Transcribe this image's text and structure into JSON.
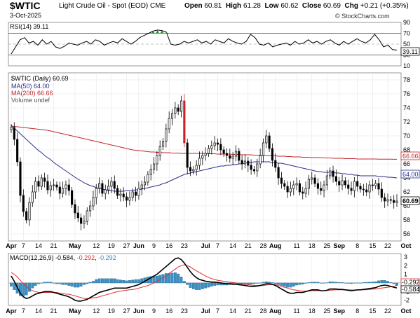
{
  "header": {
    "ticker": "$WTIC",
    "name": "Light Crude Oil - Spot (EOD)",
    "exchange": "CME",
    "date": "3-Oct-2025",
    "open_label": "Open",
    "open": "60.81",
    "high_label": "High",
    "high": "61.28",
    "low_label": "Low",
    "low": "60.62",
    "close_label": "Close",
    "close": "60.69",
    "chg_label": "Chg",
    "chg": "+0.21 (+0.35%)",
    "credit": "© StockCharts.com"
  },
  "colors": {
    "price_up_fill": "#ffffff",
    "price_down": "#000000",
    "spike": "#cc1e2c",
    "ma50": "#2a2e8c",
    "ma200": "#c0272d",
    "macd": "#000000",
    "signal": "#e03030",
    "histogram": "#3a8fc4",
    "rsi_line": "#000000",
    "rsi_overbought_fill": "#2a8c3a"
  },
  "chart_data": [
    {
      "type": "line",
      "panel": "RSI",
      "legend": "RSI(14) 39.11",
      "ylim": [
        10,
        90
      ],
      "ticks": [
        10,
        30,
        50,
        70,
        90
      ],
      "reference_lines": [
        30,
        50,
        70
      ],
      "last_value_tag": "39.11",
      "values": [
        32,
        45,
        58,
        62,
        52,
        55,
        48,
        58,
        50,
        55,
        45,
        42,
        46,
        52,
        50,
        48,
        52,
        55,
        50,
        58,
        55,
        48,
        52,
        55,
        52,
        60,
        55,
        50,
        55,
        62,
        66,
        70,
        74,
        76,
        75,
        72,
        50,
        48,
        50,
        55,
        52,
        55,
        58,
        52,
        55,
        50,
        58,
        55,
        52,
        60,
        55,
        52,
        50,
        55,
        68,
        62,
        50,
        48,
        52,
        45,
        48,
        50,
        52,
        48,
        55,
        50,
        52,
        58,
        52,
        55,
        50,
        55,
        58,
        52,
        48,
        55,
        50,
        55,
        60,
        55,
        52,
        58,
        68,
        58,
        45,
        48,
        40,
        39
      ]
    },
    {
      "type": "candlestick",
      "panel": "price",
      "legend": [
        {
          "name": "$WTIC (Daily) 60.69"
        },
        {
          "name": "MA(50) 64.00"
        },
        {
          "name": "MA(200) 66.66"
        },
        {
          "name": "Volume undef"
        }
      ],
      "ylim": [
        55,
        79
      ],
      "ticks": [
        56,
        58,
        60,
        62,
        64,
        66,
        68,
        70,
        72,
        74,
        76,
        78
      ],
      "price_tags": [
        "66.66",
        "64.00",
        "60.69"
      ],
      "x_labels": [
        {
          "label": "Apr",
          "i": 0
        },
        {
          "label": "7",
          "i": 4
        },
        {
          "label": "14",
          "i": 9
        },
        {
          "label": "21",
          "i": 14
        },
        {
          "label": "May",
          "i": 21
        },
        {
          "label": "12",
          "i": 28
        },
        {
          "label": "19",
          "i": 33
        },
        {
          "label": "27",
          "i": 38
        },
        {
          "label": "Jun",
          "i": 42
        },
        {
          "label": "9",
          "i": 47
        },
        {
          "label": "16",
          "i": 52
        },
        {
          "label": "23",
          "i": 57
        },
        {
          "label": "Jul",
          "i": 64
        },
        {
          "label": "7",
          "i": 68
        },
        {
          "label": "14",
          "i": 73
        },
        {
          "label": "21",
          "i": 78
        },
        {
          "label": "28",
          "i": 83
        },
        {
          "label": "Aug",
          "i": 87
        },
        {
          "label": "11",
          "i": 94
        },
        {
          "label": "18",
          "i": 99
        },
        {
          "label": "25",
          "i": 104
        },
        {
          "label": "Sep",
          "i": 108
        },
        {
          "label": "8",
          "i": 114
        },
        {
          "label": "15",
          "i": 119
        },
        {
          "label": "22",
          "i": 124
        },
        {
          "label": "Oct",
          "i": 130
        }
      ],
      "closes": [
        71.2,
        69.5,
        66.3,
        61.5,
        59.2,
        58.0,
        60.5,
        62.0,
        63.5,
        62.8,
        64.0,
        63.5,
        62.3,
        62.9,
        63.0,
        62.7,
        61.8,
        62.5,
        63.0,
        62.2,
        60.2,
        59.0,
        58.3,
        57.5,
        57.8,
        59.3,
        60.0,
        61.2,
        62.5,
        63.2,
        61.8,
        62.3,
        62.8,
        63.5,
        62.5,
        61.5,
        61.7,
        61.3,
        60.8,
        61.2,
        62.0,
        61.5,
        62.5,
        63.0,
        63.4,
        64.5,
        65.2,
        66.0,
        67.2,
        68.5,
        69.2,
        71.0,
        72.5,
        73.2,
        74.0,
        73.5,
        75.0,
        69.0,
        65.5,
        65.0,
        65.2,
        65.8,
        66.8,
        67.2,
        67.5,
        68.2,
        68.6,
        69.0,
        68.8,
        68.0,
        67.5,
        67.2,
        66.8,
        67.1,
        67.8,
        66.5,
        66.0,
        66.4,
        65.8,
        65.2,
        65.0,
        66.0,
        67.2,
        69.0,
        70.0,
        68.2,
        66.5,
        65.5,
        64.0,
        63.2,
        62.8,
        62.0,
        62.5,
        63.0,
        63.2,
        62.0,
        61.8,
        62.5,
        63.8,
        64.0,
        63.2,
        62.5,
        62.2,
        63.0,
        64.3,
        65.0,
        64.2,
        63.5,
        63.0,
        63.6,
        63.0,
        62.5,
        62.2,
        63.5,
        62.8,
        62.4,
        62.3,
        62.0,
        63.0,
        62.9,
        63.2,
        62.4,
        61.2,
        60.7,
        60.9,
        60.8,
        60.48,
        60.69
      ],
      "ma50": [
        71.5,
        71.1,
        70.7,
        70.3,
        69.9,
        69.5,
        69.1,
        68.7,
        68.3,
        67.9,
        67.6,
        67.2,
        66.9,
        66.6,
        66.2,
        65.9,
        65.6,
        65.3,
        65.0,
        64.7,
        64.4,
        64.1,
        63.8,
        63.6,
        63.3,
        63.1,
        62.9,
        62.8,
        62.6,
        62.5,
        62.4,
        62.3,
        62.2,
        62.2,
        62.1,
        62.1,
        62.1,
        62.1,
        62.2,
        62.2,
        62.2,
        62.3,
        62.3,
        62.4,
        62.5,
        62.6,
        62.7,
        62.8,
        62.9,
        63.0,
        63.2,
        63.3,
        63.5,
        63.7,
        63.9,
        64.1,
        64.3,
        64.5,
        64.6,
        64.7,
        64.8,
        64.9,
        65.0,
        65.1,
        65.2,
        65.3,
        65.4,
        65.5,
        65.6,
        65.7,
        65.7,
        65.8,
        65.8,
        65.9,
        65.9,
        66.0,
        66.0,
        66.1,
        66.2,
        66.2,
        66.3,
        66.3,
        66.3,
        66.3,
        66.3,
        66.3,
        66.2,
        66.2,
        66.1,
        66.1,
        66.0,
        65.9,
        65.8,
        65.7,
        65.6,
        65.5,
        65.4,
        65.3,
        65.2,
        65.1,
        65.0,
        64.9,
        64.9,
        64.8,
        64.8,
        64.8,
        64.8,
        64.7,
        64.7,
        64.6,
        64.6,
        64.5,
        64.5,
        64.4,
        64.4,
        64.3,
        64.3,
        64.3,
        64.3,
        64.3,
        64.3,
        64.2,
        64.2,
        64.2,
        64.1,
        64.1,
        64.05,
        64.0
      ],
      "ma200": [
        71.4,
        71.35,
        71.3,
        71.25,
        71.2,
        71.15,
        71.1,
        71.05,
        71.0,
        70.95,
        70.9,
        70.85,
        70.8,
        70.7,
        70.6,
        70.5,
        70.4,
        70.3,
        70.2,
        70.1,
        70.0,
        69.9,
        69.8,
        69.7,
        69.6,
        69.5,
        69.4,
        69.3,
        69.2,
        69.1,
        69.0,
        68.9,
        68.8,
        68.7,
        68.6,
        68.5,
        68.4,
        68.3,
        68.2,
        68.1,
        68.0,
        67.95,
        67.9,
        67.85,
        67.8,
        67.75,
        67.7,
        67.7,
        67.65,
        67.65,
        67.6,
        67.6,
        67.6,
        67.55,
        67.55,
        67.55,
        67.5,
        67.5,
        67.5,
        67.5,
        67.5,
        67.5,
        67.5,
        67.5,
        67.45,
        67.45,
        67.45,
        67.45,
        67.4,
        67.4,
        67.4,
        67.4,
        67.4,
        67.35,
        67.35,
        67.35,
        67.3,
        67.3,
        67.3,
        67.3,
        67.25,
        67.25,
        67.25,
        67.2,
        67.2,
        67.2,
        67.15,
        67.15,
        67.1,
        67.1,
        67.1,
        67.05,
        67.05,
        67.0,
        67.0,
        67.0,
        66.95,
        66.95,
        66.95,
        66.9,
        66.9,
        66.9,
        66.9,
        66.85,
        66.85,
        66.85,
        66.8,
        66.8,
        66.8,
        66.8,
        66.75,
        66.75,
        66.75,
        66.75,
        66.7,
        66.7,
        66.7,
        66.7,
        66.7,
        66.7,
        66.7,
        66.68,
        66.68,
        66.68,
        66.67,
        66.67,
        66.66,
        66.66
      ]
    },
    {
      "type": "line",
      "panel": "MACD",
      "legend": [
        {
          "name": "MACD(12,26,9)",
          "value": "-0.584"
        },
        {
          "name": "",
          "value": "-0.292"
        },
        {
          "name": "",
          "value": "-0.292"
        }
      ],
      "ylim": [
        -2.6,
        3.4
      ],
      "ticks": [
        -2,
        -1,
        0,
        1,
        2,
        3
      ],
      "value_tags": [
        "-0.292",
        "-0.584"
      ],
      "macd": [
        0.8,
        0.2,
        -0.5,
        -1.2,
        -1.6,
        -1.8,
        -1.7,
        -1.5,
        -1.3,
        -1.2,
        -1.1,
        -1.0,
        -1.0,
        -1.0,
        -1.1,
        -1.2,
        -1.3,
        -1.4,
        -1.5,
        -1.6,
        -1.8,
        -2.0,
        -2.1,
        -2.1,
        -2.0,
        -1.9,
        -1.7,
        -1.5,
        -1.3,
        -1.1,
        -1.0,
        -0.9,
        -0.8,
        -0.7,
        -0.6,
        -0.6,
        -0.6,
        -0.6,
        -0.6,
        -0.5,
        -0.4,
        -0.3,
        -0.2,
        0.0,
        0.2,
        0.4,
        0.6,
        0.8,
        1.0,
        1.3,
        1.6,
        1.9,
        2.2,
        2.5,
        2.8,
        2.9,
        2.7,
        2.3,
        1.8,
        1.3,
        0.9,
        0.6,
        0.4,
        0.3,
        0.2,
        0.15,
        0.1,
        0.1,
        0.05,
        0.0,
        -0.05,
        -0.1,
        -0.1,
        -0.15,
        -0.15,
        -0.2,
        -0.25,
        -0.3,
        -0.35,
        -0.4,
        -0.4,
        -0.35,
        -0.3,
        -0.2,
        -0.1,
        -0.1,
        -0.15,
        -0.3,
        -0.5,
        -0.7,
        -0.9,
        -1.1,
        -1.2,
        -1.2,
        -1.1,
        -1.1,
        -1.1,
        -1.0,
        -0.9,
        -0.8,
        -0.8,
        -0.8,
        -0.9,
        -0.9,
        -0.85,
        -0.7,
        -0.7,
        -0.7,
        -0.75,
        -0.75,
        -0.8,
        -0.85,
        -0.9,
        -0.85,
        -0.8,
        -0.8,
        -0.75,
        -0.7,
        -0.65,
        -0.6,
        -0.55,
        -0.4,
        -0.3,
        -0.25,
        -0.3,
        -0.4,
        -0.5,
        -0.584
      ],
      "signal": [
        1.2,
        1.0,
        0.7,
        0.3,
        -0.1,
        -0.4,
        -0.7,
        -0.9,
        -1.0,
        -1.1,
        -1.1,
        -1.1,
        -1.1,
        -1.1,
        -1.1,
        -1.1,
        -1.2,
        -1.2,
        -1.3,
        -1.3,
        -1.4,
        -1.5,
        -1.6,
        -1.7,
        -1.8,
        -1.8,
        -1.8,
        -1.7,
        -1.7,
        -1.6,
        -1.5,
        -1.4,
        -1.3,
        -1.2,
        -1.1,
        -1.0,
        -0.95,
        -0.9,
        -0.85,
        -0.8,
        -0.75,
        -0.7,
        -0.6,
        -0.5,
        -0.4,
        -0.3,
        -0.15,
        0.0,
        0.2,
        0.4,
        0.6,
        0.8,
        1.1,
        1.35,
        1.6,
        1.85,
        2.0,
        2.1,
        2.0,
        1.85,
        1.6,
        1.4,
        1.2,
        1.0,
        0.8,
        0.65,
        0.5,
        0.4,
        0.3,
        0.25,
        0.2,
        0.15,
        0.1,
        0.05,
        0.0,
        -0.05,
        -0.1,
        -0.15,
        -0.2,
        -0.25,
        -0.3,
        -0.3,
        -0.3,
        -0.3,
        -0.25,
        -0.2,
        -0.2,
        -0.2,
        -0.3,
        -0.4,
        -0.5,
        -0.6,
        -0.7,
        -0.8,
        -0.85,
        -0.9,
        -0.95,
        -0.95,
        -0.95,
        -0.9,
        -0.9,
        -0.9,
        -0.9,
        -0.9,
        -0.88,
        -0.85,
        -0.82,
        -0.8,
        -0.8,
        -0.8,
        -0.8,
        -0.8,
        -0.82,
        -0.82,
        -0.82,
        -0.8,
        -0.8,
        -0.78,
        -0.75,
        -0.72,
        -0.7,
        -0.65,
        -0.6,
        -0.55,
        -0.5,
        -0.45,
        -0.4,
        -0.292
      ]
    }
  ]
}
